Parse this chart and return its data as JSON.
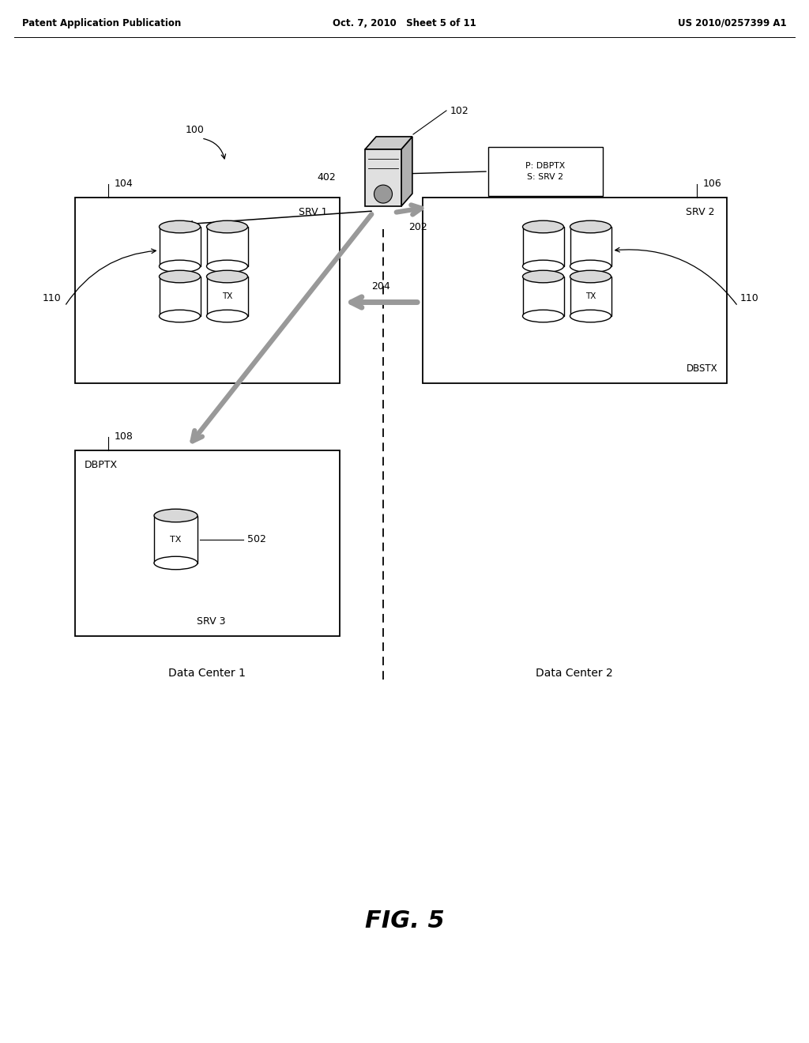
{
  "bg_color": "#ffffff",
  "header_left": "Patent Application Publication",
  "header_center": "Oct. 7, 2010   Sheet 5 of 11",
  "header_right": "US 2010/0257399 A1",
  "fig_label": "FIG. 5",
  "label_100": "100",
  "label_102": "102",
  "label_104": "104",
  "label_106": "106",
  "label_108": "108",
  "label_110_left": "110",
  "label_110_right": "110",
  "label_202": "202",
  "label_204": "204",
  "label_402": "402",
  "label_502": "502",
  "srv1_label": "SRV 1",
  "srv2_label": "SRV 2",
  "srv3_label": "SRV 3",
  "db_box_left_label": "DBPTX",
  "db_box_right_label": "DBSTX",
  "p_box_text": "P: DBPTX\nS: SRV 2",
  "data_center1": "Data Center 1",
  "data_center2": "Data Center 2"
}
